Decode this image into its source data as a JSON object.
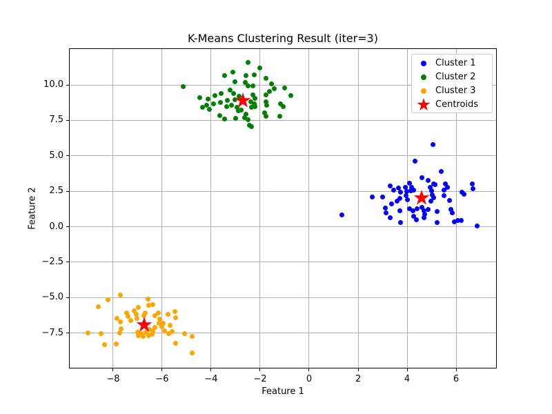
{
  "chart_data": {
    "type": "scatter",
    "title": "K-Means Clustering Result (iter=3)",
    "xlabel": "Feature 1",
    "ylabel": "Feature 2",
    "xlim": [
      -9.8,
      7.66
    ],
    "ylim": [
      -10.0,
      12.58
    ],
    "grid": true,
    "background": "#ffffff",
    "grid_color": "#b0b0b0",
    "spine_color": "#000000",
    "legend": {
      "position": "upper right",
      "border_color": "#cccccc",
      "entries": [
        {
          "label": "Cluster 1",
          "color": "#0000ff",
          "marker": "circle"
        },
        {
          "label": "Cluster 2",
          "color": "#008000",
          "marker": "circle"
        },
        {
          "label": "Cluster 3",
          "color": "#ffa500",
          "marker": "circle"
        },
        {
          "label": "Centroids",
          "color": "#ff0000",
          "marker": "star"
        }
      ]
    },
    "xticks": {
      "values": [
        -8,
        -6,
        -4,
        -2,
        0,
        2,
        4,
        6
      ],
      "labels": [
        "−8",
        "−6",
        "−4",
        "−2",
        "0",
        "2",
        "4",
        "6"
      ]
    },
    "yticks": {
      "values": [
        -7.5,
        -5.0,
        -2.5,
        0.0,
        2.5,
        5.0,
        7.5,
        10.0
      ],
      "labels": [
        "−7.5",
        "−5.0",
        "−2.5",
        "0.0",
        "2.5",
        "5.0",
        "7.5",
        "10.0"
      ]
    },
    "series": [
      {
        "name": "Cluster 1",
        "color": "#0000ff",
        "marker": "circle",
        "points": [
          [
            5.06,
            5.78
          ],
          [
            4.33,
            4.64
          ],
          [
            5.39,
            3.91
          ],
          [
            4.61,
            3.45
          ],
          [
            4.85,
            3.25
          ],
          [
            5.08,
            3.04
          ],
          [
            4.09,
            3.09
          ],
          [
            4.19,
            2.79
          ],
          [
            3.3,
            2.89
          ],
          [
            3.44,
            2.6
          ],
          [
            3.65,
            2.73
          ],
          [
            3.72,
            2.43
          ],
          [
            3.92,
            2.79
          ],
          [
            3.98,
            2.47
          ],
          [
            4.14,
            2.51
          ],
          [
            4.28,
            2.6
          ],
          [
            4.94,
            2.76
          ],
          [
            5.13,
            2.96
          ],
          [
            5.55,
            3.01
          ],
          [
            5.64,
            2.76
          ],
          [
            6.65,
            3.01
          ],
          [
            6.7,
            2.69
          ],
          [
            6.33,
            2.3
          ],
          [
            6.25,
            2.43
          ],
          [
            4.99,
            2.51
          ],
          [
            5.03,
            2.26
          ],
          [
            5.5,
            2.6
          ],
          [
            5.5,
            2.19
          ],
          [
            2.59,
            2.07
          ],
          [
            2.99,
            2.11
          ],
          [
            3.36,
            1.62
          ],
          [
            3.6,
            1.78
          ],
          [
            3.69,
            2.0
          ],
          [
            3.95,
            2.19
          ],
          [
            4.0,
            1.91
          ],
          [
            4.96,
            1.81
          ],
          [
            5.08,
            2.02
          ],
          [
            5.74,
            1.86
          ],
          [
            3.11,
            1.32
          ],
          [
            3.15,
            0.97
          ],
          [
            3.7,
            1.13
          ],
          [
            4.09,
            1.26
          ],
          [
            4.23,
            1.13
          ],
          [
            4.42,
            1.29
          ],
          [
            4.61,
            1.37
          ],
          [
            4.7,
            1.13
          ],
          [
            4.85,
            1.21
          ],
          [
            5.22,
            1.05
          ],
          [
            5.78,
            1.21
          ],
          [
            5.83,
            0.97
          ],
          [
            3.32,
            0.64
          ],
          [
            3.72,
            0.31
          ],
          [
            4.28,
            0.72
          ],
          [
            4.37,
            0.51
          ],
          [
            4.7,
            0.64
          ],
          [
            4.73,
            0.88
          ],
          [
            5.22,
            0.28
          ],
          [
            6.07,
            0.46
          ],
          [
            6.21,
            0.46
          ],
          [
            5.92,
            0.34
          ],
          [
            6.86,
            0.05
          ],
          [
            1.34,
            0.83
          ]
        ]
      },
      {
        "name": "Cluster 2",
        "color": "#008000",
        "marker": "circle",
        "points": [
          [
            -5.15,
            9.86
          ],
          [
            -2.48,
            11.58
          ],
          [
            -2.01,
            11.21
          ],
          [
            -3.46,
            10.65
          ],
          [
            -3.12,
            10.88
          ],
          [
            -2.57,
            10.64
          ],
          [
            -2.24,
            10.69
          ],
          [
            -1.77,
            10.48
          ],
          [
            -3.04,
            10.23
          ],
          [
            -2.6,
            10.16
          ],
          [
            -2.48,
            9.95
          ],
          [
            -2.29,
            9.95
          ],
          [
            -1.54,
            10.06
          ],
          [
            -1.42,
            9.74
          ],
          [
            -1.0,
            9.79
          ],
          [
            -0.76,
            9.25
          ],
          [
            -3.23,
            9.62
          ],
          [
            -3.09,
            9.38
          ],
          [
            -3.59,
            9.38
          ],
          [
            -3.85,
            9.26
          ],
          [
            -4.12,
            9.02
          ],
          [
            -4.47,
            9.1
          ],
          [
            -1.77,
            9.3
          ],
          [
            -1.63,
            9.54
          ],
          [
            -2.29,
            9.3
          ],
          [
            -2.2,
            9.05
          ],
          [
            -2.85,
            9.22
          ],
          [
            -3.04,
            8.97
          ],
          [
            -3.35,
            8.89
          ],
          [
            -3.62,
            8.77
          ],
          [
            -3.89,
            8.64
          ],
          [
            -4.17,
            8.56
          ],
          [
            -4.34,
            8.4
          ],
          [
            -4.08,
            8.28
          ],
          [
            -3.18,
            8.56
          ],
          [
            -3.37,
            8.48
          ],
          [
            -2.95,
            8.4
          ],
          [
            -2.39,
            8.81
          ],
          [
            -2.24,
            8.64
          ],
          [
            -2.34,
            8.4
          ],
          [
            -2.22,
            8.45
          ],
          [
            -2.76,
            8.24
          ],
          [
            -2.9,
            8.16
          ],
          [
            -1.73,
            8.56
          ],
          [
            -1.75,
            8.81
          ],
          [
            -1.16,
            8.68
          ],
          [
            -1.05,
            8.45
          ],
          [
            -3.65,
            7.83
          ],
          [
            -3.45,
            7.61
          ],
          [
            -3.01,
            7.63
          ],
          [
            -2.57,
            7.94
          ],
          [
            -2.62,
            7.7
          ],
          [
            -1.82,
            8.02
          ],
          [
            -1.77,
            7.79
          ],
          [
            -1.21,
            7.79
          ],
          [
            -2.48,
            7.53
          ],
          [
            -2.43,
            7.17
          ],
          [
            -2.34,
            7.06
          ]
        ]
      },
      {
        "name": "Cluster 3",
        "color": "#ffa500",
        "marker": "circle",
        "points": [
          [
            -7.71,
            -4.81
          ],
          [
            -8.21,
            -5.17
          ],
          [
            -8.6,
            -5.65
          ],
          [
            -6.58,
            -5.13
          ],
          [
            -6.56,
            -5.57
          ],
          [
            -6.39,
            -5.49
          ],
          [
            -6.97,
            -5.68
          ],
          [
            -7.13,
            -5.93
          ],
          [
            -7.46,
            -6.09
          ],
          [
            -7.38,
            -6.35
          ],
          [
            -7.85,
            -6.46
          ],
          [
            -7.69,
            -6.71
          ],
          [
            -7.27,
            -6.63
          ],
          [
            -7.03,
            -6.46
          ],
          [
            -7.06,
            -6.19
          ],
          [
            -6.75,
            -6.3
          ],
          [
            -6.68,
            -6.06
          ],
          [
            -6.28,
            -6.3
          ],
          [
            -6.14,
            -6.06
          ],
          [
            -5.77,
            -6.17
          ],
          [
            -5.48,
            -5.98
          ],
          [
            -5.46,
            -6.43
          ],
          [
            -6.09,
            -6.54
          ],
          [
            -6.12,
            -6.82
          ],
          [
            -6.02,
            -7.08
          ],
          [
            -6.3,
            -7.11
          ],
          [
            -6.37,
            -7.36
          ],
          [
            -6.52,
            -7.24
          ],
          [
            -6.66,
            -7.44
          ],
          [
            -6.85,
            -7.55
          ],
          [
            -6.99,
            -7.44
          ],
          [
            -6.96,
            -7.68
          ],
          [
            -6.77,
            -7.76
          ],
          [
            -6.56,
            -7.68
          ],
          [
            -6.42,
            -7.6
          ],
          [
            -5.91,
            -7.36
          ],
          [
            -5.74,
            -7.52
          ],
          [
            -5.6,
            -7.41
          ],
          [
            -7.66,
            -7.19
          ],
          [
            -7.74,
            -7.47
          ],
          [
            -9.03,
            -7.47
          ],
          [
            -8.49,
            -7.52
          ],
          [
            -8.35,
            -8.33
          ],
          [
            -7.88,
            -8.25
          ],
          [
            -5.46,
            -8.21
          ],
          [
            -5.08,
            -7.52
          ],
          [
            -4.78,
            -7.76
          ],
          [
            -4.78,
            -8.9
          ],
          [
            -5.95,
            -6.82
          ],
          [
            -5.67,
            -6.95
          ]
        ]
      },
      {
        "name": "Centroids",
        "color": "#ff0000",
        "marker": "star",
        "points": [
          [
            -2.7,
            8.9
          ],
          [
            4.58,
            2.0
          ],
          [
            -6.73,
            -6.95
          ]
        ]
      }
    ]
  }
}
